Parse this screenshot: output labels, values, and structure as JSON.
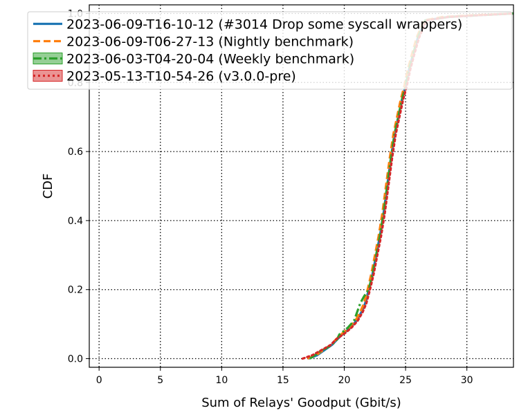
{
  "chart_data": {
    "type": "line",
    "xlabel": "Sum of Relays' Goodput (Gbit/s)",
    "ylabel": "CDF",
    "xlim": [
      -0.8,
      33.8
    ],
    "ylim": [
      -0.025,
      1.025
    ],
    "xticks": [
      0,
      5,
      10,
      15,
      20,
      25,
      30
    ],
    "yticks": [
      0.0,
      0.2,
      0.4,
      0.6,
      0.8,
      1.0
    ],
    "xtick_labels": [
      "0",
      "5",
      "10",
      "15",
      "20",
      "25",
      "30"
    ],
    "ytick_labels": [
      "0.0",
      "0.2",
      "0.4",
      "0.6",
      "0.8",
      "1.0"
    ],
    "grid": true,
    "legend_position": "top",
    "series": [
      {
        "name": "2023-06-09-T16-10-12 (#3014 Drop some syscall wrappers)",
        "color": "#1f77b4",
        "linestyle": "solid",
        "x": [
          17.1,
          17.8,
          18.2,
          18.6,
          19.0,
          19.4,
          19.7,
          20.0,
          20.5,
          21.0,
          21.4,
          21.7,
          22.0,
          22.3,
          22.6,
          22.9,
          23.2,
          23.5,
          23.8,
          24.1,
          24.4,
          24.7,
          25.0,
          25.3,
          25.6,
          26.0,
          26.6,
          28.5,
          31.0,
          33.8
        ],
        "y": [
          0.0,
          0.01,
          0.02,
          0.03,
          0.04,
          0.055,
          0.065,
          0.075,
          0.09,
          0.11,
          0.135,
          0.16,
          0.2,
          0.245,
          0.3,
          0.355,
          0.42,
          0.5,
          0.58,
          0.65,
          0.7,
          0.75,
          0.79,
          0.84,
          0.88,
          0.93,
          0.98,
          0.99,
          0.995,
          1.0
        ]
      },
      {
        "name": "2023-06-09-T06-27-13 (Nightly benchmark)",
        "color": "#ff7f0e",
        "linestyle": "dashed",
        "x": [
          17.0,
          17.7,
          18.1,
          18.5,
          18.9,
          19.3,
          19.6,
          19.9,
          20.4,
          20.9,
          21.3,
          21.6,
          21.9,
          22.2,
          22.5,
          22.8,
          23.1,
          23.4,
          23.7,
          24.0,
          24.3,
          24.6,
          24.9,
          25.2,
          25.5,
          25.9,
          26.5,
          28.0,
          30.5,
          33.8
        ],
        "y": [
          0.0,
          0.01,
          0.02,
          0.03,
          0.04,
          0.055,
          0.065,
          0.075,
          0.09,
          0.11,
          0.135,
          0.16,
          0.2,
          0.245,
          0.3,
          0.355,
          0.42,
          0.5,
          0.58,
          0.65,
          0.7,
          0.75,
          0.79,
          0.84,
          0.88,
          0.93,
          0.98,
          0.99,
          0.995,
          1.0
        ]
      },
      {
        "name": "2023-06-03-T04-20-04 (Weekly benchmark)",
        "color": "#2ca02c",
        "linestyle": "dashdot",
        "x": [
          17.2,
          17.6,
          18.0,
          18.5,
          19.0,
          19.4,
          19.6,
          19.8,
          20.3,
          20.8,
          21.3,
          21.6,
          22.0,
          22.3,
          22.6,
          22.9,
          23.2,
          23.5,
          23.8,
          24.1,
          24.4,
          24.7,
          25.0,
          25.3,
          25.6,
          26.0,
          26.6,
          28.5,
          31.0,
          33.8
        ],
        "y": [
          0.0,
          0.01,
          0.02,
          0.03,
          0.04,
          0.055,
          0.07,
          0.075,
          0.09,
          0.11,
          0.16,
          0.18,
          0.2,
          0.245,
          0.3,
          0.355,
          0.42,
          0.5,
          0.58,
          0.65,
          0.7,
          0.75,
          0.79,
          0.84,
          0.88,
          0.93,
          0.98,
          0.99,
          0.995,
          1.0
        ]
      },
      {
        "name": "2023-05-13-T10-54-26 (v3.0.0-pre)",
        "color": "#d62728",
        "linestyle": "dotted",
        "x": [
          16.6,
          17.4,
          17.9,
          18.4,
          18.9,
          19.3,
          19.7,
          20.1,
          20.6,
          21.1,
          21.5,
          21.8,
          22.1,
          22.4,
          22.7,
          23.0,
          23.3,
          23.6,
          23.9,
          24.2,
          24.5,
          24.8,
          25.1,
          25.4,
          25.7,
          26.1,
          26.7,
          28.5,
          31.0,
          33.8
        ],
        "y": [
          0.0,
          0.01,
          0.02,
          0.03,
          0.04,
          0.055,
          0.065,
          0.075,
          0.09,
          0.11,
          0.135,
          0.16,
          0.2,
          0.245,
          0.3,
          0.355,
          0.42,
          0.5,
          0.58,
          0.65,
          0.7,
          0.75,
          0.79,
          0.84,
          0.88,
          0.93,
          0.98,
          0.99,
          0.995,
          1.0
        ]
      }
    ]
  }
}
